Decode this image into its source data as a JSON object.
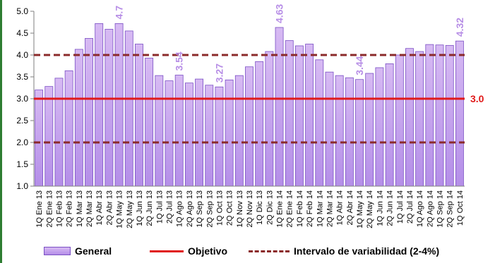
{
  "chart_data": {
    "type": "bar",
    "categories": [
      "1Q Ene 13",
      "2Q Ene 13",
      "1Q Feb 13",
      "2Q Feb 13",
      "1Q Mar 13",
      "2Q Mar 13",
      "1Q Abr 13",
      "2Q Abr 13",
      "1Q May 13",
      "2Q May 13",
      "1Q Jun 13",
      "2Q Jun 13",
      "1Q Jul 13",
      "2Q Jul 13",
      "1Q Ago 13",
      "2Q Ago 13",
      "1Q Sep 13",
      "2Q Sep 13",
      "1Q Oct 13",
      "2Q Oct 13",
      "1Q Nov 13",
      "2Q Nov 13",
      "1Q Dic 13",
      "2Q Dic 13",
      "1Q Ene 14",
      "2Q Ene 14",
      "1Q Feb 14",
      "2Q Feb 14",
      "1Q Mar 14",
      "2Q Mar 14",
      "1Q Abr 14",
      "2Q Abr 14",
      "1Q May 14",
      "2Q May 14",
      "1Q Jun 14",
      "2Q Jun 14",
      "1Q Jul 14",
      "2Q Jul 14",
      "1Q Ago 14",
      "2Q Ago 14",
      "1Q Sep 14",
      "2Q Sep 14",
      "1Q Oct 14"
    ],
    "series": [
      {
        "name": "General",
        "values": [
          3.2,
          3.28,
          3.47,
          3.64,
          4.13,
          4.38,
          4.72,
          4.59,
          4.72,
          4.55,
          4.25,
          3.93,
          3.53,
          3.41,
          3.54,
          3.36,
          3.45,
          3.31,
          3.27,
          3.43,
          3.53,
          3.73,
          3.85,
          4.08,
          4.63,
          4.33,
          4.21,
          4.25,
          3.89,
          3.61,
          3.53,
          3.48,
          3.44,
          3.58,
          3.71,
          3.8,
          4.0,
          4.15,
          4.08,
          4.24,
          4.23,
          4.22,
          4.32
        ]
      }
    ],
    "reference_lines": [
      {
        "name": "Objetivo",
        "value": 3.0,
        "color": "#e01919",
        "style": "solid",
        "label": "3.0"
      },
      {
        "name": "Intervalo de variabilidad (2-4%)",
        "values": [
          2.0,
          4.0
        ],
        "color": "#8b2a2a",
        "style": "dashed"
      }
    ],
    "data_labels": [
      {
        "index": 8,
        "text": "4.7"
      },
      {
        "index": 14,
        "text": "3.54"
      },
      {
        "index": 18,
        "text": "3.27"
      },
      {
        "index": 24,
        "text": "4.63"
      },
      {
        "index": 32,
        "text": "3.44"
      },
      {
        "index": 42,
        "text": "4.32"
      }
    ],
    "y_ticks": [
      "1.0",
      "1.5",
      "2.0",
      "2.5",
      "3.0",
      "3.5",
      "4.0",
      "4.5",
      "5.0"
    ],
    "ylim": [
      1.0,
      5.0
    ],
    "grid": false,
    "legend_position": "bottom",
    "colors": {
      "bar_top": "#d7baf3",
      "bar_bottom": "#b48ee8",
      "bar_border": "#7a4fc4",
      "data_label": "#b78ee6",
      "objective": "#e01919",
      "interval": "#8b2a2a",
      "accent_bar": "#2e7d32"
    }
  },
  "legend": {
    "general": "General",
    "objetivo": "Objetivo",
    "intervalo": "Intervalo de variabilidad (2-4%)"
  }
}
